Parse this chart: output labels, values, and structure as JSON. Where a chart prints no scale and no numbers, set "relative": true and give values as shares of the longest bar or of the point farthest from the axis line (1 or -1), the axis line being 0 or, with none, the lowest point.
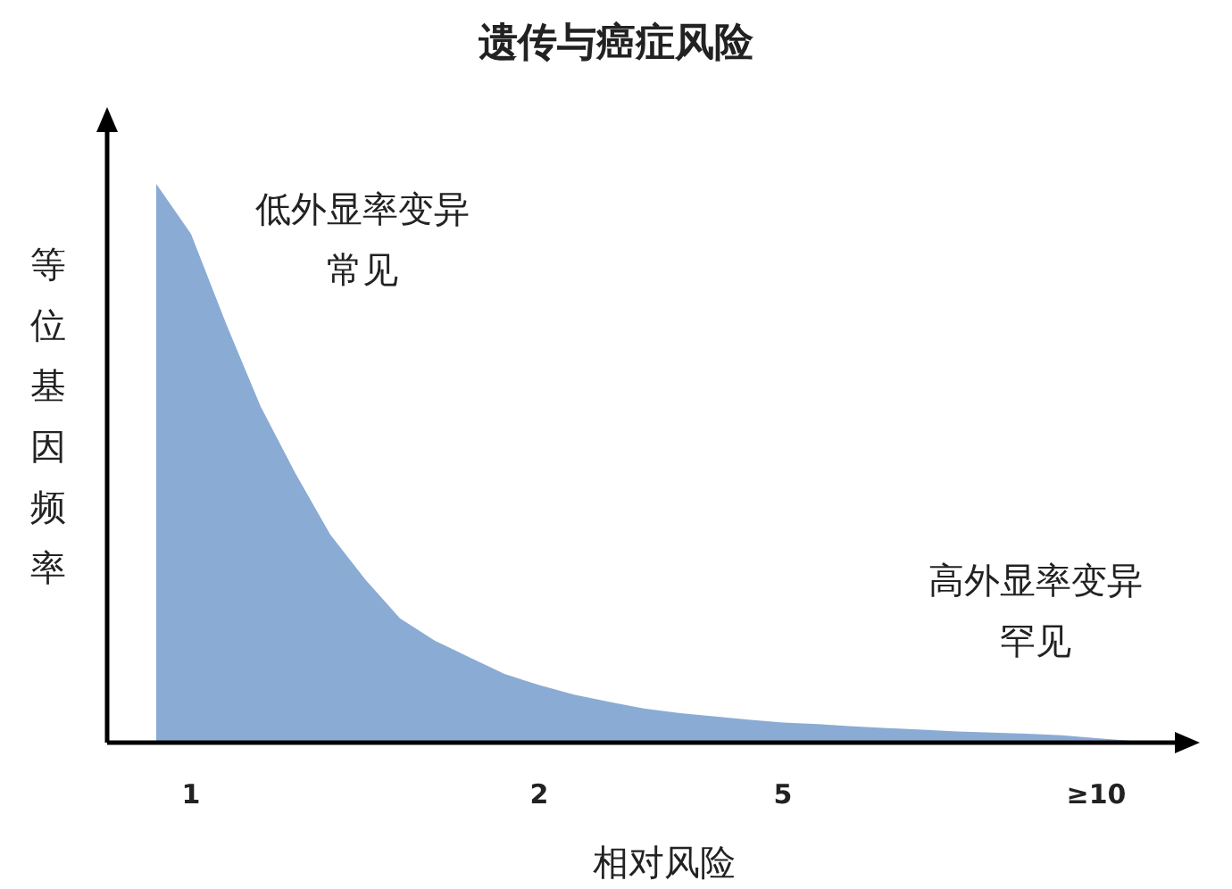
{
  "chart_data": {
    "type": "area",
    "title": "遗传与癌症风险",
    "xlabel": "相对风险",
    "ylabel": "等位基因频率",
    "relative": true,
    "color": "#8aabd4",
    "categories": [
      null,
      "1",
      null,
      null,
      null,
      null,
      null,
      null,
      null,
      null,
      null,
      "2",
      null,
      null,
      null,
      null,
      null,
      null,
      "5",
      null,
      null,
      null,
      null,
      null,
      null,
      null,
      null,
      "≥10",
      null
    ],
    "values": [
      1,
      0.91,
      0.75,
      0.6,
      0.48,
      0.37,
      0.29,
      0.22,
      0.18,
      0.15,
      0.12,
      0.1,
      0.083,
      0.07,
      0.058,
      0.05,
      0.044,
      0.038,
      0.033,
      0.03,
      0.026,
      0.023,
      0.02,
      0.017,
      0.015,
      0.013,
      0.01,
      0.005,
      0
    ],
    "annotations": [
      "低外显率变异常见",
      "高外显率变异罕见"
    ]
  }
}
